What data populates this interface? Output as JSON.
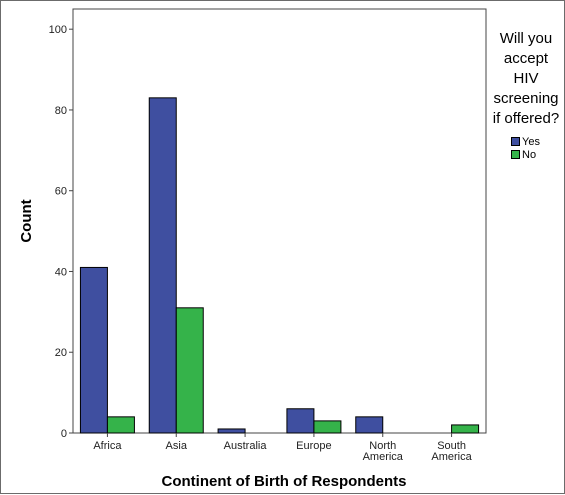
{
  "chart_data": {
    "type": "bar",
    "xlabel": "Continent of Birth of Respondents",
    "ylabel": "Count",
    "ylim": [
      0,
      105
    ],
    "yticks": [
      0,
      20,
      40,
      60,
      80,
      100
    ],
    "grid": false,
    "legend_position": "right",
    "legend_title": "Will you\naccept\nHIV\nscreening\nif offered?",
    "categories": [
      "Africa",
      "Asia",
      "Australia",
      "Europe",
      "North\nAmerica",
      "South\nAmerica"
    ],
    "series": [
      {
        "name": "Yes",
        "color": "#3f4fa0",
        "values": [
          41,
          83,
          1,
          6,
          4,
          0
        ]
      },
      {
        "name": "No",
        "color": "#35b34a",
        "values": [
          4,
          31,
          0,
          3,
          0,
          2
        ]
      }
    ]
  }
}
